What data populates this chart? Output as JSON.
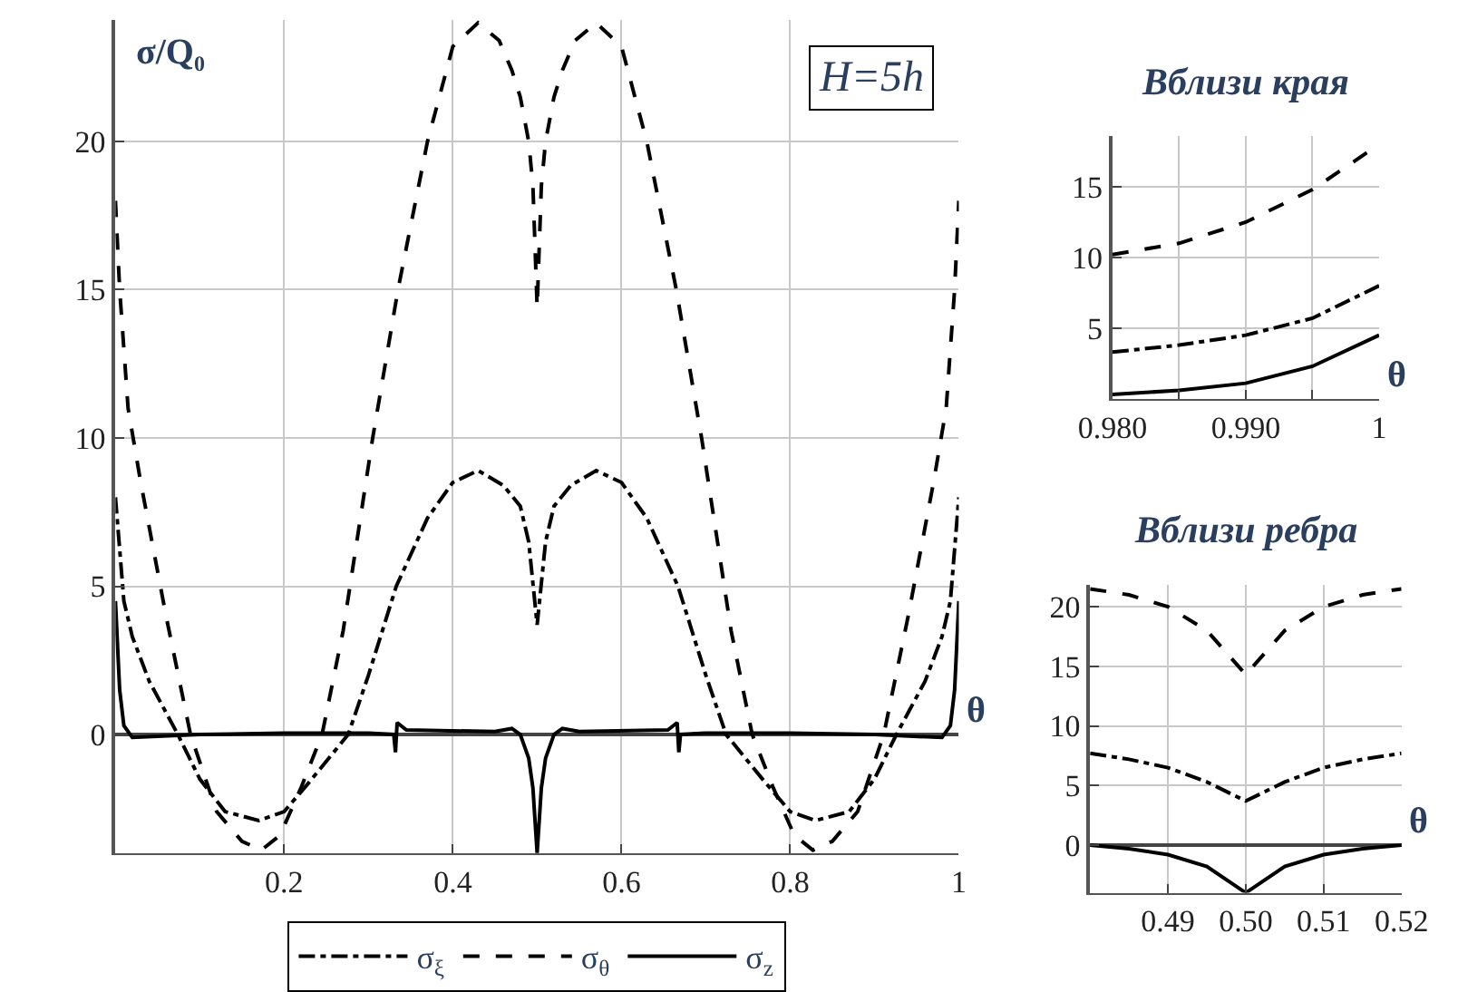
{
  "chart_data": [
    {
      "type": "line",
      "xlabel": "θ",
      "ylabel": "σ/Q₀",
      "annotations": [
        "H=5h"
      ],
      "xlim": [
        0,
        1
      ],
      "ylim": [
        -4,
        24.1
      ],
      "xticks": [
        0.2,
        0.4,
        0.6,
        0.8,
        1
      ],
      "yticks": [
        0,
        5,
        10,
        15,
        20
      ],
      "grid": true,
      "legend": "bottom",
      "series": [
        {
          "name": "σ$_{ξ}$",
          "color": "#000000",
          "line_style": "dashdot",
          "x": [
            0,
            0.01,
            0.02,
            0.04,
            0.074,
            0.1,
            0.13,
            0.17,
            0.2,
            0.23,
            0.276,
            0.3,
            0.333,
            0.37,
            0.4,
            0.43,
            0.46,
            0.48,
            0.49,
            0.5,
            0.51,
            0.52,
            0.54,
            0.57,
            0.6,
            0.63,
            0.667,
            0.7,
            0.724,
            0.77,
            0.8,
            0.83,
            0.87,
            0.9,
            0.926,
            0.96,
            0.98,
            0.99,
            1
          ],
          "values": [
            8,
            4.5,
            3.3,
            1.8,
            0,
            -1.5,
            -2.6,
            -2.9,
            -2.6,
            -1.6,
            0,
            2,
            5,
            7.3,
            8.5,
            8.9,
            8.4,
            7.7,
            6.5,
            3.7,
            6.5,
            7.7,
            8.4,
            8.9,
            8.5,
            7.3,
            5,
            2,
            0,
            -1.6,
            -2.6,
            -2.9,
            -2.6,
            -1.5,
            0,
            1.8,
            3.3,
            4.5,
            8
          ]
        },
        {
          "name": "σ$_{θ}$",
          "color": "#000000",
          "line_style": "dashed",
          "x": [
            0,
            0.005,
            0.015,
            0.03,
            0.06,
            0.089,
            0.12,
            0.15,
            0.173,
            0.195,
            0.22,
            0.245,
            0.27,
            0.305,
            0.335,
            0.37,
            0.4,
            0.43,
            0.455,
            0.47,
            0.48,
            0.49,
            0.495,
            0.5,
            0.505,
            0.51,
            0.52,
            0.53,
            0.545,
            0.57,
            0.6,
            0.63,
            0.665,
            0.695,
            0.73,
            0.755,
            0.78,
            0.805,
            0.827,
            0.85,
            0.88,
            0.911,
            0.94,
            0.97,
            0.985,
            0.995,
            1
          ],
          "values": [
            18,
            15,
            11,
            8.5,
            4,
            0,
            -2.6,
            -3.6,
            -3.9,
            -3.4,
            -1.8,
            0,
            3.5,
            10,
            15,
            20,
            23.2,
            24,
            23.4,
            22.4,
            21.5,
            20,
            18.5,
            14.4,
            18.5,
            20,
            21.5,
            22.4,
            23.4,
            24,
            23.2,
            20,
            15,
            10,
            3.5,
            0,
            -1.8,
            -3.4,
            -3.9,
            -3.6,
            -2.6,
            0,
            4,
            8.5,
            11,
            15,
            18
          ]
        },
        {
          "name": "σ$_{z}$",
          "color": "#000000",
          "line_style": "solid",
          "x": [
            0,
            0.005,
            0.01,
            0.02,
            0.1,
            0.2,
            0.3,
            0.33,
            0.332,
            0.334,
            0.345,
            0.45,
            0.47,
            0.48,
            0.49,
            0.495,
            0.5,
            0.505,
            0.51,
            0.52,
            0.53,
            0.55,
            0.655,
            0.666,
            0.668,
            0.67,
            0.7,
            0.8,
            0.9,
            0.98,
            0.99,
            0.995,
            1
          ],
          "values": [
            4.5,
            1.5,
            0.3,
            -0.1,
            0,
            0.05,
            0.05,
            0,
            -0.6,
            0.4,
            0.15,
            0.1,
            0.2,
            0,
            -0.8,
            -1.8,
            -4,
            -1.8,
            -0.8,
            0,
            0.2,
            0.1,
            0.15,
            0.4,
            -0.6,
            0,
            0.05,
            0.05,
            0,
            -0.1,
            0.3,
            1.5,
            4.5
          ]
        }
      ]
    },
    {
      "type": "line",
      "title": "Вблизи края",
      "xlabel": "θ",
      "x": [
        0.98,
        0.985,
        0.99,
        0.995,
        1
      ],
      "xlim": [
        0.98,
        1
      ],
      "ylim": [
        0,
        18.6
      ],
      "xticks": [
        {
          "value": 0.98,
          "label": "0.980"
        },
        {
          "value": 0.985,
          "label": null
        },
        {
          "value": 0.99,
          "label": "0.990"
        },
        {
          "value": 0.995,
          "label": null
        },
        1
      ],
      "yticks": [
        5,
        10,
        15
      ],
      "grid": true,
      "series": [
        {
          "color": "#000000",
          "line_style": "dashed",
          "values": [
            10.2,
            11,
            12.5,
            14.8,
            18
          ]
        },
        {
          "color": "#000000",
          "line_style": "dashdot",
          "values": [
            3.3,
            3.8,
            4.5,
            5.7,
            8
          ]
        },
        {
          "color": "#000000",
          "line_style": "solid",
          "values": [
            0.3,
            0.6,
            1.1,
            2.3,
            4.5
          ]
        }
      ]
    },
    {
      "type": "line",
      "title": "Вблизи ребра",
      "xlabel": "θ",
      "x": [
        0.48,
        0.485,
        0.49,
        0.495,
        0.5,
        0.505,
        0.51,
        0.515,
        0.52
      ],
      "xlim": [
        0.48,
        0.52
      ],
      "ylim": [
        -4,
        21.8
      ],
      "xticks": [
        {
          "value": 0.49,
          "label": "0.49"
        },
        {
          "value": 0.5,
          "label": "0.50"
        },
        {
          "value": 0.51,
          "label": "0.51"
        },
        {
          "value": 0.52,
          "label": "0.52"
        }
      ],
      "yticks": [
        0,
        5,
        10,
        15,
        20
      ],
      "grid": true,
      "series": [
        {
          "color": "#000000",
          "line_style": "dashed",
          "values": [
            21.5,
            21,
            20,
            18,
            14.3,
            18,
            20,
            21,
            21.5
          ]
        },
        {
          "color": "#000000",
          "line_style": "dashdot",
          "values": [
            7.7,
            7.2,
            6.5,
            5.3,
            3.7,
            5.3,
            6.5,
            7.2,
            7.7
          ]
        },
        {
          "color": "#000000",
          "line_style": "solid",
          "values": [
            0,
            -0.3,
            -0.8,
            -1.8,
            -4,
            -1.8,
            -0.8,
            -0.3,
            0
          ]
        }
      ]
    }
  ]
}
